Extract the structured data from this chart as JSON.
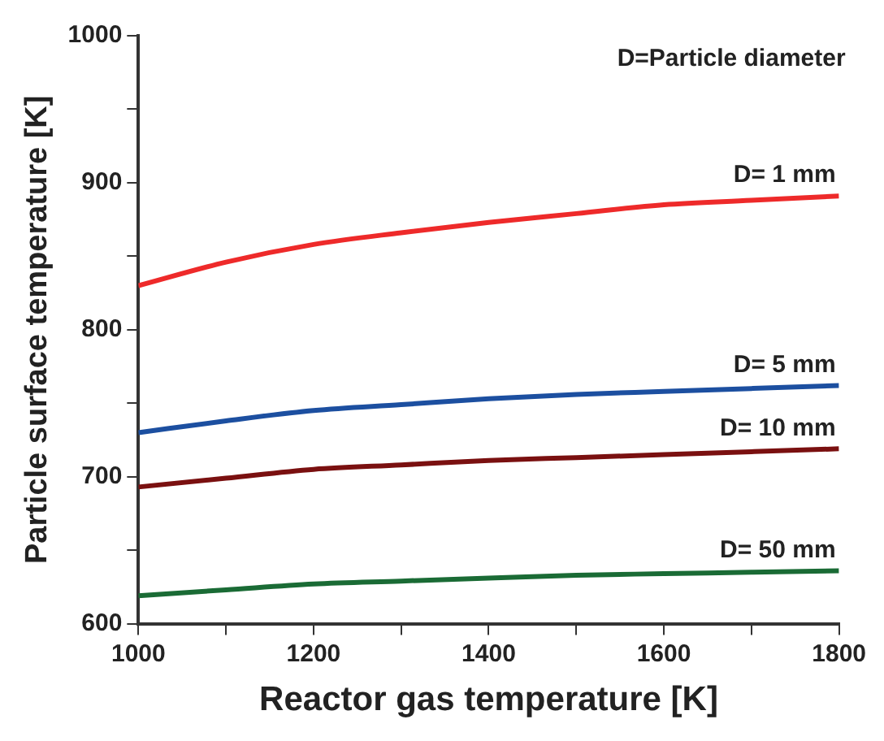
{
  "chart_data": {
    "type": "line",
    "xlabel": "Reactor gas temperature [K]",
    "ylabel": "Particle surface temperature [K]",
    "annotations": [
      "D=Particle diameter"
    ],
    "x": [
      1000,
      1100,
      1200,
      1300,
      1400,
      1500,
      1600,
      1700,
      1800
    ],
    "series": [
      {
        "name": "D= 1 mm",
        "color": "#ee2a2a",
        "values": [
          830,
          846,
          858,
          866,
          873,
          879,
          885,
          888,
          891
        ]
      },
      {
        "name": "D= 5 mm",
        "color": "#1c4fa0",
        "values": [
          730,
          738,
          745,
          749,
          753,
          756,
          758,
          760,
          762
        ]
      },
      {
        "name": "D= 10 mm",
        "color": "#7a1010",
        "values": [
          693,
          699,
          705,
          708,
          711,
          713,
          715,
          717,
          719
        ]
      },
      {
        "name": "D= 50 mm",
        "color": "#1a6b35",
        "values": [
          619,
          623,
          627,
          629,
          631,
          633,
          634,
          635,
          636
        ]
      }
    ],
    "xlim": [
      1000,
      1800
    ],
    "xticks": [
      1000,
      {
        "value": 1100,
        "label": null
      },
      1200,
      {
        "value": 1300,
        "label": null
      },
      1400,
      {
        "value": 1500,
        "label": null
      },
      1600,
      {
        "value": 1700,
        "label": null
      },
      1800
    ],
    "ylim": [
      600,
      1000
    ],
    "yticks": [
      600,
      {
        "value": 650,
        "label": null
      },
      700,
      {
        "value": 750,
        "label": null
      },
      800,
      {
        "value": 850,
        "label": null
      },
      900,
      {
        "value": 950,
        "label": null
      },
      1000
    ],
    "grid": false,
    "legend": false,
    "marker": "none",
    "line_style": "solid"
  }
}
